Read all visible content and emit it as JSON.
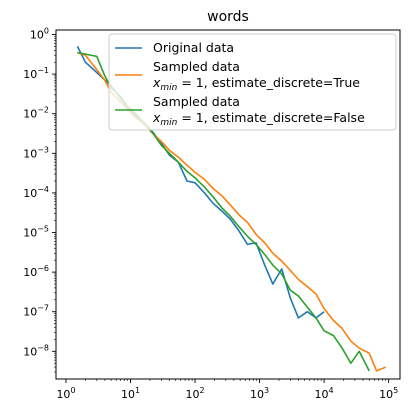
{
  "chart_data": {
    "type": "line",
    "title": "words",
    "xlabel": "",
    "ylabel": "",
    "xscale": "log",
    "yscale": "log",
    "xlim": [
      0.7,
      150000
    ],
    "ylim": [
      2e-09,
      1.3
    ],
    "grid": false,
    "legend_position": "top-right",
    "x_ticks": [
      {
        "value": 1,
        "base": "10",
        "exp": "0"
      },
      {
        "value": 10,
        "base": "10",
        "exp": "1"
      },
      {
        "value": 100,
        "base": "10",
        "exp": "2"
      },
      {
        "value": 1000,
        "base": "10",
        "exp": "3"
      },
      {
        "value": 10000,
        "base": "10",
        "exp": "4"
      },
      {
        "value": 100000,
        "base": "10",
        "exp": "5"
      }
    ],
    "y_ticks": [
      {
        "value": 1,
        "base": "10",
        "exp": "0"
      },
      {
        "value": 0.1,
        "base": "10",
        "exp": "−1"
      },
      {
        "value": 0.01,
        "base": "10",
        "exp": "−2"
      },
      {
        "value": 0.001,
        "base": "10",
        "exp": "−3"
      },
      {
        "value": 0.0001,
        "base": "10",
        "exp": "−4"
      },
      {
        "value": 1e-05,
        "base": "10",
        "exp": "−5"
      },
      {
        "value": 1e-06,
        "base": "10",
        "exp": "−6"
      },
      {
        "value": 1e-07,
        "base": "10",
        "exp": "−7"
      },
      {
        "value": 1e-08,
        "base": "10",
        "exp": "−8"
      }
    ],
    "series": [
      {
        "name": "Original data",
        "legend_lines": [
          "Original data"
        ],
        "color": "#1f77b4",
        "x": [
          1.5,
          2,
          3,
          5,
          7,
          9,
          12,
          16,
          22,
          30,
          40,
          55,
          75,
          100,
          140,
          190,
          260,
          350,
          480,
          650,
          880,
          1200,
          1600,
          2200,
          3000,
          4000,
          5500,
          7500,
          10000
        ],
        "y": [
          0.5,
          0.2,
          0.11,
          0.05,
          0.025,
          0.014,
          0.009,
          0.006,
          0.0035,
          0.0018,
          0.0009,
          0.0006,
          0.0002,
          0.00018,
          0.0001,
          5.5e-05,
          3.5e-05,
          2.2e-05,
          1.1e-05,
          5e-06,
          5.5e-06,
          1.5e-06,
          5e-07,
          1.2e-06,
          2.2e-07,
          7e-08,
          1e-07,
          7e-08,
          1e-07
        ]
      },
      {
        "name": "Sampled data",
        "legend_lines": [
          "Sampled data",
          "x_min = 1, estimate_discrete=True"
        ],
        "color": "#ff7f0e",
        "x": [
          1.5,
          2,
          3,
          4,
          5,
          7,
          9,
          12,
          16,
          22,
          30,
          40,
          55,
          75,
          100,
          140,
          190,
          260,
          350,
          480,
          650,
          880,
          1200,
          1600,
          2200,
          3000,
          4000,
          5500,
          7500,
          10000,
          14000,
          19000,
          26000,
          35000,
          50000,
          65000,
          90000
        ],
        "y": [
          0.35,
          0.3,
          0.13,
          0.07,
          0.035,
          0.02,
          0.013,
          0.008,
          0.0055,
          0.0032,
          0.002,
          0.0012,
          0.0008,
          0.0005,
          0.00033,
          0.00022,
          0.00013,
          8.5e-05,
          5e-05,
          2.8e-05,
          1.8e-05,
          9e-06,
          5.5e-06,
          3e-06,
          1.9e-06,
          1.1e-06,
          6.5e-07,
          4.3e-07,
          2.8e-07,
          1.2e-07,
          6e-08,
          3.8e-08,
          1.8e-08,
          1.2e-08,
          9e-09,
          3.2e-09,
          4e-09
        ]
      },
      {
        "name": "Sampled data",
        "legend_lines": [
          "Sampled data",
          "x_min = 1, estimate_discrete=False"
        ],
        "color": "#2ca02c",
        "x": [
          1.5,
          2,
          3,
          4,
          5,
          7,
          9,
          12,
          16,
          22,
          30,
          40,
          55,
          75,
          100,
          140,
          190,
          260,
          350,
          480,
          650,
          880,
          1200,
          1600,
          2200,
          3000,
          4000,
          5500,
          7500,
          10000,
          14000,
          19000,
          26000,
          35000,
          50000
        ],
        "y": [
          0.35,
          0.32,
          0.28,
          0.09,
          0.045,
          0.027,
          0.015,
          0.01,
          0.006,
          0.0033,
          0.0016,
          0.001,
          0.0006,
          0.00035,
          0.00024,
          0.00014,
          8e-05,
          4.2e-05,
          2.6e-05,
          1.4e-05,
          8e-06,
          5e-06,
          2.8e-06,
          1.5e-06,
          9e-07,
          3.5e-07,
          2.5e-07,
          1.3e-07,
          7e-08,
          3.3e-08,
          2.5e-08,
          1.2e-08,
          5e-09,
          1e-08,
          3.2e-09
        ]
      }
    ]
  }
}
